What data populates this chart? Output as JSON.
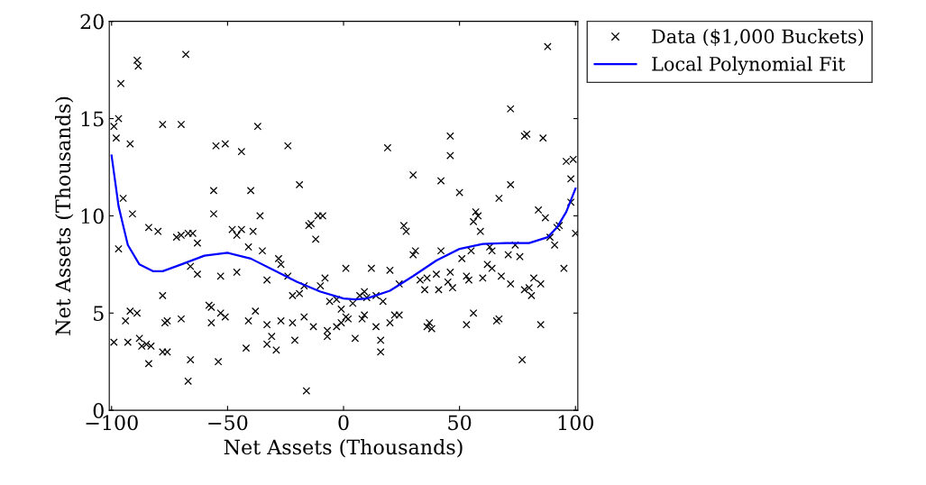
{
  "chart_data": {
    "type": "scatter",
    "xlabel": "Net Assets (Thousands)",
    "ylabel": "Net Assets (Thousands)",
    "xlim": [
      -101,
      101
    ],
    "ylim": [
      0,
      20
    ],
    "xticks": [
      {
        "value": -100,
        "label": "−100"
      },
      {
        "value": -50,
        "label": "−50"
      },
      0,
      50,
      100
    ],
    "yticks": [
      0,
      5,
      10,
      15,
      20
    ],
    "grid": false,
    "legend": "top right",
    "series": [
      {
        "name": "Data ($1,000 Buckets)",
        "color": "#000000",
        "marker": "cross",
        "x": [
          -99,
          -98,
          -97,
          -96,
          -95,
          -92,
          -91,
          -89,
          -88.5,
          -78,
          -70,
          -68,
          -56,
          -56,
          -55,
          -51,
          -44,
          -40,
          -37,
          -36,
          -24,
          -19,
          -11,
          19,
          30,
          46,
          46,
          42,
          50,
          72,
          72,
          78,
          79,
          88,
          86,
          96,
          99,
          98,
          84,
          -97,
          -92,
          -84,
          -80,
          -78,
          -77,
          -76,
          -72,
          -70,
          -67,
          -65,
          -66,
          -63,
          -63,
          -58,
          -57,
          -53,
          -48,
          -46,
          -46,
          -44,
          -41,
          -39,
          -38,
          -35,
          -33,
          -28,
          -27,
          -24,
          -22,
          -19,
          -17,
          -15,
          -14,
          -12,
          -10,
          -9,
          -8,
          -6,
          -3,
          -1,
          1,
          4,
          7,
          9,
          10,
          12,
          14,
          17,
          20,
          24,
          26,
          27,
          30,
          31,
          33,
          35,
          36,
          40,
          41,
          42,
          45,
          46,
          47,
          51,
          53,
          54,
          55,
          56,
          57,
          58,
          59,
          60,
          62,
          63,
          64,
          64,
          67,
          68,
          71,
          72,
          74,
          76,
          78,
          80,
          81,
          82,
          85,
          87,
          89,
          91,
          92,
          93,
          95,
          98,
          100,
          -99,
          -94,
          -93,
          -89,
          -88,
          -87,
          -85,
          -84,
          -83,
          -78,
          -76,
          -70,
          -66,
          -67,
          -57,
          -54,
          -53,
          -51,
          -41,
          -42,
          -33,
          -33,
          -31,
          -29,
          -27,
          -22,
          -21,
          -17,
          -16,
          -13,
          -7,
          -7,
          -3,
          -1,
          1,
          2,
          5,
          8,
          9,
          14,
          16,
          16,
          20,
          22,
          24,
          36,
          37,
          38,
          53,
          56,
          66,
          67,
          77,
          85
        ],
        "values": [
          14.6,
          14.0,
          15.0,
          16.8,
          10.9,
          13.7,
          10.1,
          18.0,
          17.7,
          14.7,
          14.7,
          18.3,
          11.3,
          10.1,
          13.6,
          13.7,
          13.3,
          11.3,
          14.6,
          10.0,
          13.6,
          11.6,
          10.0,
          13.5,
          12.1,
          14.1,
          13.1,
          11.8,
          11.2,
          15.5,
          11.6,
          14.1,
          14.2,
          18.7,
          14.0,
          12.8,
          12.9,
          11.9,
          10.3,
          8.3,
          5.1,
          9.4,
          9.2,
          5.9,
          4.5,
          4.6,
          8.9,
          9.0,
          9.1,
          9.1,
          7.4,
          8.6,
          7.0,
          5.4,
          5.3,
          6.9,
          9.3,
          7.1,
          9.0,
          9.3,
          8.4,
          9.2,
          5.1,
          8.2,
          6.7,
          7.8,
          7.5,
          6.9,
          5.9,
          6.0,
          6.4,
          9.5,
          9.6,
          8.8,
          6.4,
          10.0,
          6.8,
          5.6,
          5.7,
          5.2,
          7.3,
          5.5,
          5.9,
          6.1,
          5.8,
          7.3,
          5.9,
          5.6,
          7.2,
          6.5,
          9.5,
          9.2,
          8.0,
          8.2,
          6.7,
          6.2,
          6.8,
          7.0,
          6.2,
          8.2,
          6.6,
          7.1,
          6.3,
          7.8,
          6.9,
          6.7,
          8.2,
          9.7,
          10.2,
          10.0,
          9.2,
          6.8,
          7.5,
          8.4,
          8.2,
          7.3,
          10.9,
          6.9,
          8.0,
          6.5,
          8.5,
          7.9,
          6.2,
          6.3,
          5.9,
          6.8,
          6.5,
          9.9,
          8.9,
          8.5,
          9.4,
          9.5,
          7.3,
          10.7,
          9.1,
          3.5,
          4.6,
          3.5,
          5.0,
          3.7,
          3.3,
          3.4,
          2.4,
          3.3,
          3.0,
          3.0,
          4.7,
          2.6,
          1.5,
          4.5,
          2.5,
          5.0,
          4.8,
          4.6,
          3.2,
          4.4,
          3.4,
          3.8,
          3.1,
          4.6,
          4.5,
          3.6,
          4.8,
          1.0,
          4.3,
          3.8,
          4.1,
          4.3,
          4.5,
          4.8,
          4.7,
          3.7,
          4.7,
          4.9,
          4.3,
          3.6,
          3.0,
          4.5,
          4.9,
          4.9,
          4.3,
          4.5,
          4.2,
          4.4,
          5.0,
          4.6,
          4.7,
          2.6,
          4.4
        ]
      },
      {
        "name": "Local Polynomial Fit",
        "type": "line",
        "color": "#0000ff",
        "marker": "none",
        "line_style": "solid",
        "x": [
          -100,
          -97,
          -93,
          -88,
          -82,
          -78,
          -70,
          -60,
          -50,
          -40,
          -30,
          -20,
          -10,
          0,
          5,
          10,
          20,
          30,
          40,
          50,
          60,
          70,
          80,
          88,
          92,
          96,
          100
        ],
        "values": [
          13.1,
          10.5,
          8.5,
          7.5,
          7.15,
          7.15,
          7.5,
          7.95,
          8.1,
          7.8,
          7.2,
          6.6,
          6.1,
          5.75,
          5.7,
          5.75,
          6.15,
          6.9,
          7.7,
          8.3,
          8.55,
          8.6,
          8.6,
          8.9,
          9.4,
          10.2,
          11.4
        ]
      }
    ]
  }
}
